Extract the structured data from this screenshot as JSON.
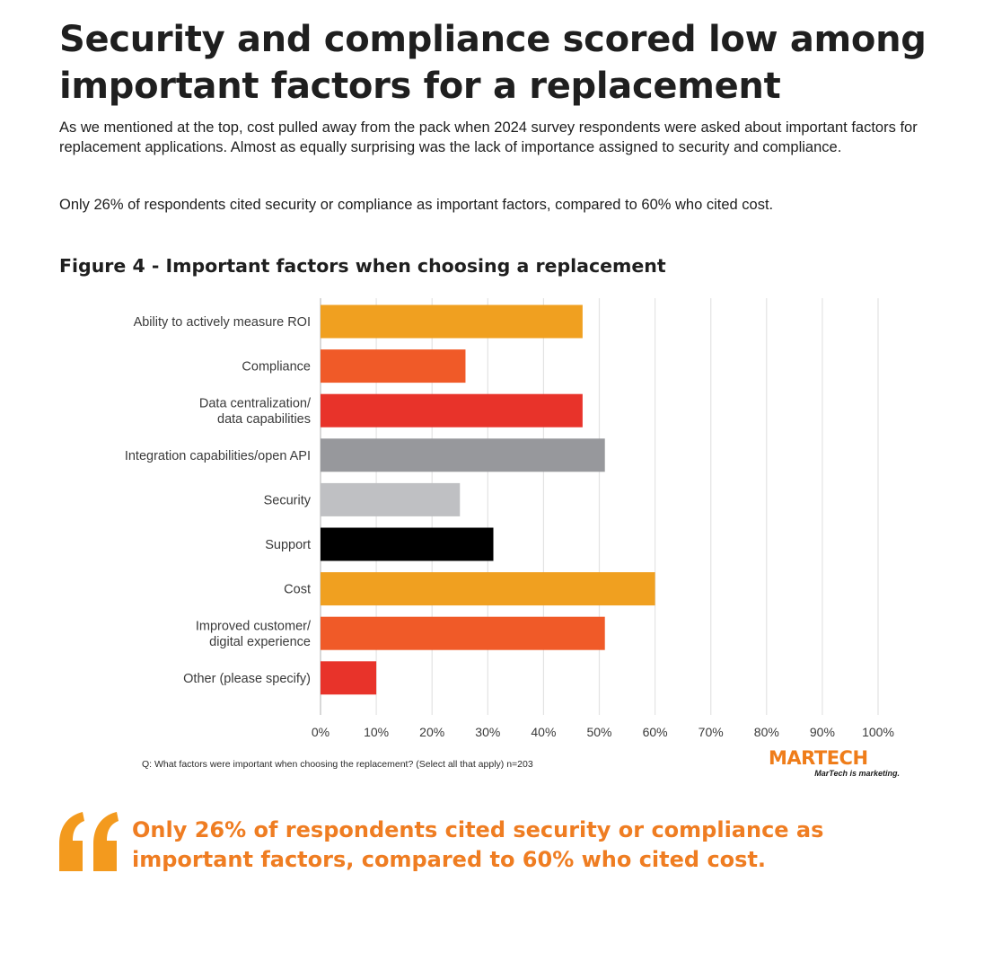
{
  "headline": "Security and compliance scored low among important factors for a replacement",
  "intro_paragraph": "As we mentioned at the top, cost pulled away from the pack when 2024 survey respondents were asked about important factors for replacement applications. Almost as equally surprising was the lack of importance assigned to security and compliance.",
  "stat_paragraph": "Only 26% of respondents cited security or compliance as important factors, compared to 60% who cited cost.",
  "figure_title": "Figure 4 - Important factors when choosing a replacement",
  "footnote": "Q: What factors were important when choosing the replacement? (Select all that apply) n=203",
  "brand": {
    "name": "MARTECH",
    "tagline": "MarTech is marketing."
  },
  "pull_quote": "Only 26% of respondents cited security or compliance as important factors, compared to 60% who cited cost.",
  "colors": {
    "accent": "#ef7d22",
    "text": "#1f1f1f"
  },
  "chart_data": {
    "type": "bar",
    "orientation": "horizontal",
    "title": "Figure 4 - Important factors when choosing a replacement",
    "categories": [
      "Ability to actively measure ROI",
      "Compliance",
      "Data centralization/\ndata capabilities",
      "Integration capabilities/open API",
      "Security",
      "Support",
      "Cost",
      "Improved customer/\ndigital experience",
      "Other (please specify)"
    ],
    "values": [
      47,
      26,
      47,
      51,
      25,
      31,
      60,
      51,
      10
    ],
    "unit": "%",
    "bar_colors": [
      "#f0a020",
      "#f05a28",
      "#e8332a",
      "#97989c",
      "#bfc0c3",
      "#000000",
      "#f0a020",
      "#f05a28",
      "#e8332a"
    ],
    "xlim": [
      0,
      100
    ],
    "xticks": [
      0,
      10,
      20,
      30,
      40,
      50,
      60,
      70,
      80,
      90,
      100
    ],
    "xtick_labels": [
      "0%",
      "10%",
      "20%",
      "30%",
      "40%",
      "50%",
      "60%",
      "70%",
      "80%",
      "90%",
      "100%"
    ],
    "grid": true,
    "xlabel": "",
    "ylabel": ""
  }
}
